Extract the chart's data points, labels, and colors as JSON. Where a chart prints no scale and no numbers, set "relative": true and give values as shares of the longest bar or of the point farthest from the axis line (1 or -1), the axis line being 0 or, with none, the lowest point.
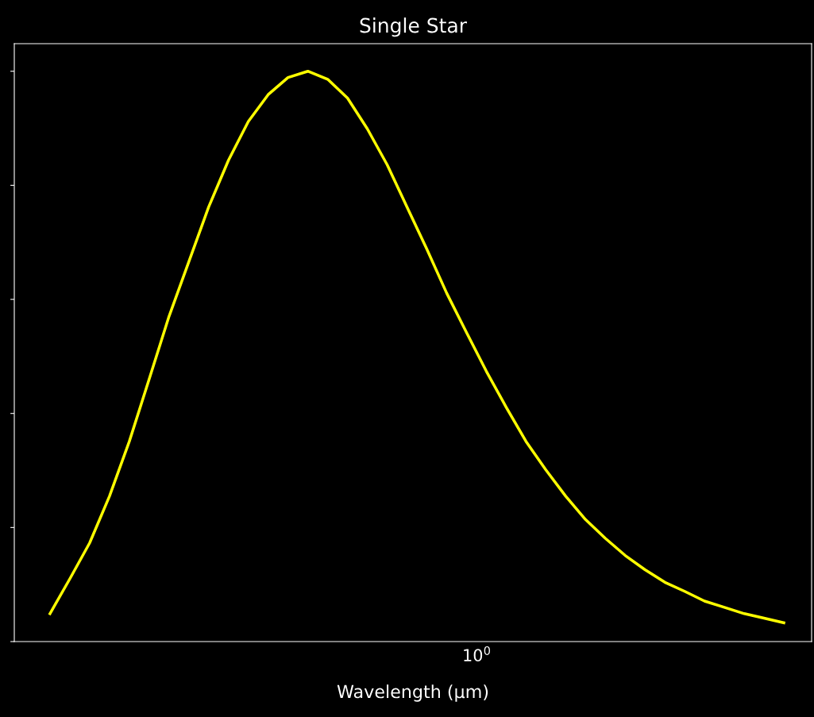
{
  "chart_data": {
    "type": "line",
    "title": "Single Star",
    "xlabel": "Wavelength (μm)",
    "relative": true,
    "grid": false,
    "annotations": [
      "10$^{0}$"
    ],
    "categories": [
      null,
      null,
      null,
      null,
      null,
      null,
      null,
      null,
      null,
      null,
      null,
      null,
      null,
      null,
      null,
      null,
      null,
      null,
      null,
      null,
      null,
      null,
      null,
      null,
      null,
      null,
      null,
      null,
      null,
      null,
      null,
      null,
      null,
      null,
      null,
      null,
      null,
      null
    ],
    "series": [
      {
        "color": "#ffff00",
        "values": [
          0.049,
          0.11,
          0.173,
          0.255,
          0.351,
          0.46,
          0.57,
          0.666,
          0.762,
          0.844,
          0.912,
          0.959,
          0.989,
          1.0,
          0.986,
          0.953,
          0.899,
          0.836,
          0.762,
          0.688,
          0.611,
          0.542,
          0.474,
          0.411,
          0.351,
          0.301,
          0.255,
          0.214,
          0.181,
          0.151,
          0.126,
          0.104,
          0.088,
          0.071,
          0.06,
          0.049,
          0.041,
          0.033
        ]
      }
    ]
  }
}
